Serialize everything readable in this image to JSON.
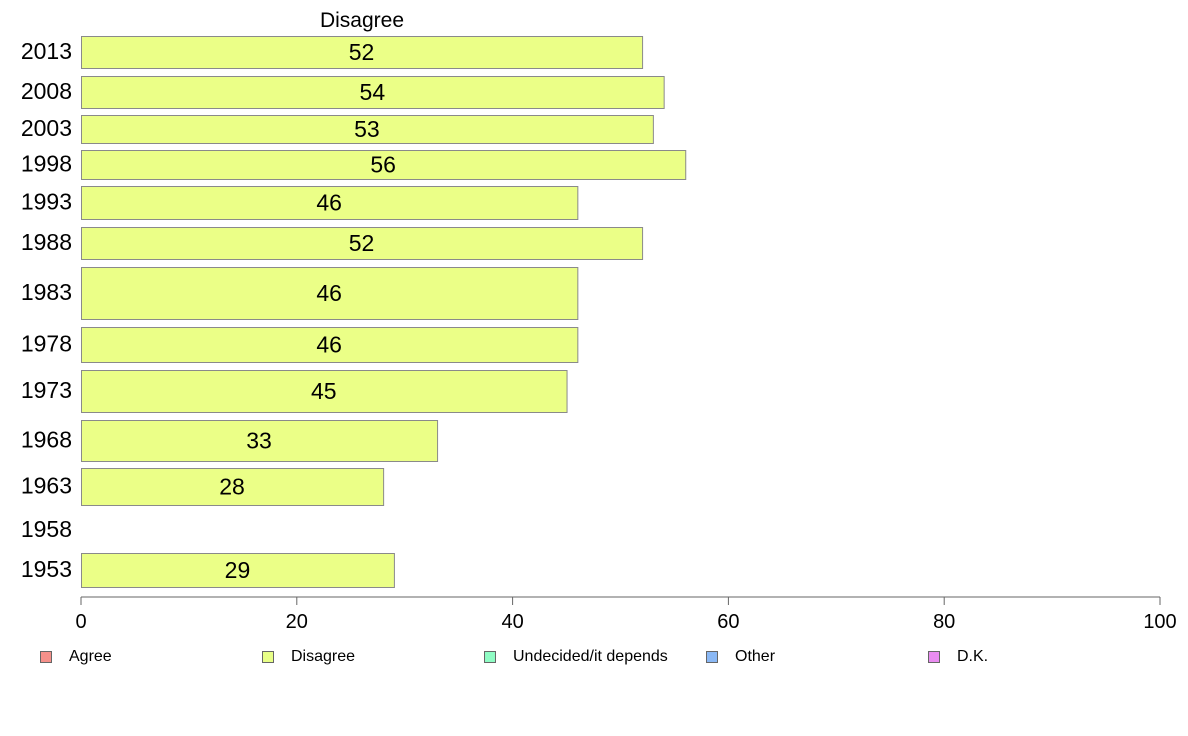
{
  "chart_data": {
    "type": "bar",
    "orientation": "horizontal",
    "title": "Disagree",
    "categories": [
      "2013",
      "2008",
      "2003",
      "1998",
      "1993",
      "1988",
      "1983",
      "1978",
      "1973",
      "1968",
      "1963",
      "1958",
      "1953"
    ],
    "series": [
      {
        "name": "Disagree",
        "values": [
          52,
          54,
          53,
          56,
          46,
          52,
          46,
          46,
          45,
          33,
          28,
          null,
          29
        ]
      }
    ],
    "data_labels": [
      "52",
      "54",
      "53",
      "56",
      "46",
      "52",
      "46",
      "46",
      "45",
      "33",
      "28",
      "",
      "29"
    ],
    "xlim": [
      0,
      100
    ],
    "x_ticks": [
      "0",
      "20",
      "40",
      "60",
      "80",
      "100"
    ],
    "grid": false,
    "legend_position": "bottom",
    "legend": [
      {
        "label": "Agree",
        "color": "#f5908a"
      },
      {
        "label": "Disagree",
        "color": "#e8ff87"
      },
      {
        "label": "Undecided/it depends",
        "color": "#8ffcc4"
      },
      {
        "label": "Other",
        "color": "#8ab8f5"
      },
      {
        "label": "D.K.",
        "color": "#e98cf0"
      }
    ],
    "colors": {
      "bar_fill": "#ebff87",
      "bar_stroke": "#8a8a8a",
      "axis": "#666666"
    }
  }
}
